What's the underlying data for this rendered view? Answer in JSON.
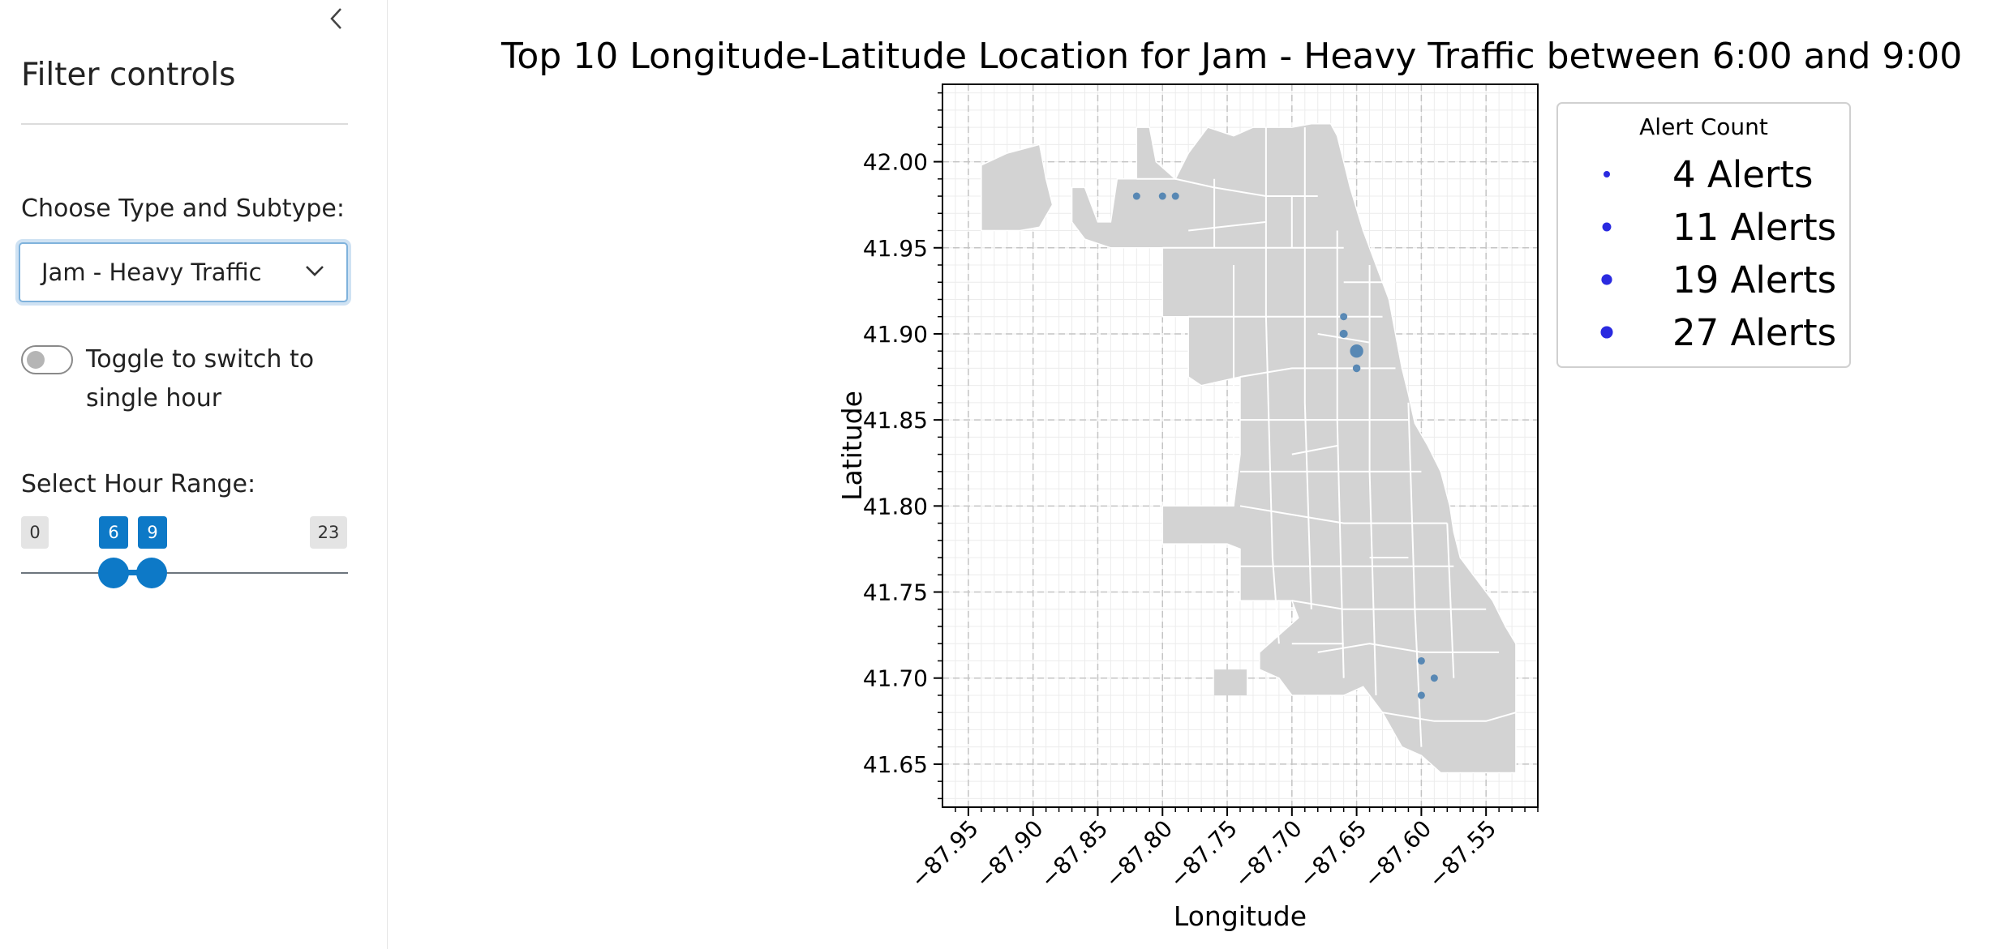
{
  "sidebar": {
    "title": "Filter controls",
    "type_label": "Choose Type and Subtype:",
    "type_value": "Jam - Heavy Traffic",
    "toggle_label": "Toggle to switch to single hour",
    "hour_label": "Select Hour Range:",
    "slider": {
      "min": 0,
      "max": 23,
      "low": 6,
      "high": 9,
      "min_label": "0",
      "max_label": "23",
      "low_label": "6",
      "high_label": "9"
    },
    "collapse_icon": "chevron-left-icon",
    "select_icon": "chevron-down-icon"
  },
  "chart_data": {
    "type": "scatter",
    "title": "Top 10 Longitude-Latitude Location for Jam - Heavy Traffic between 6:00 and 9:00",
    "xlabel": "Longitude",
    "ylabel": "Latitude",
    "xlim": [
      -87.97,
      -87.51
    ],
    "ylim": [
      41.625,
      42.045
    ],
    "xticks": [
      "−87.95",
      "−87.90",
      "−87.85",
      "−87.80",
      "−87.75",
      "−87.70",
      "−87.65",
      "−87.60",
      "−87.55"
    ],
    "yticks": [
      "41.65",
      "41.70",
      "41.75",
      "41.80",
      "41.85",
      "41.90",
      "41.95",
      "42.00"
    ],
    "grid": true,
    "point_color": "#4a7fb0",
    "map_fill": "#d3d3d3",
    "points": [
      {
        "x": -87.82,
        "y": 41.98,
        "count": 4
      },
      {
        "x": -87.8,
        "y": 41.98,
        "count": 4
      },
      {
        "x": -87.79,
        "y": 41.98,
        "count": 4
      },
      {
        "x": -87.66,
        "y": 41.91,
        "count": 4
      },
      {
        "x": -87.66,
        "y": 41.9,
        "count": 6
      },
      {
        "x": -87.65,
        "y": 41.89,
        "count": 27
      },
      {
        "x": -87.65,
        "y": 41.88,
        "count": 5
      },
      {
        "x": -87.6,
        "y": 41.71,
        "count": 4
      },
      {
        "x": -87.59,
        "y": 41.7,
        "count": 4
      },
      {
        "x": -87.6,
        "y": 41.69,
        "count": 4
      }
    ],
    "legend": {
      "title": "Alert Count",
      "placement": "upper-right-outside",
      "color": "#2a2ae0",
      "entries": [
        {
          "label": "4 Alerts",
          "count": 4
        },
        {
          "label": "11 Alerts",
          "count": 11
        },
        {
          "label": "19 Alerts",
          "count": 19
        },
        {
          "label": "27 Alerts",
          "count": 27
        }
      ]
    }
  }
}
